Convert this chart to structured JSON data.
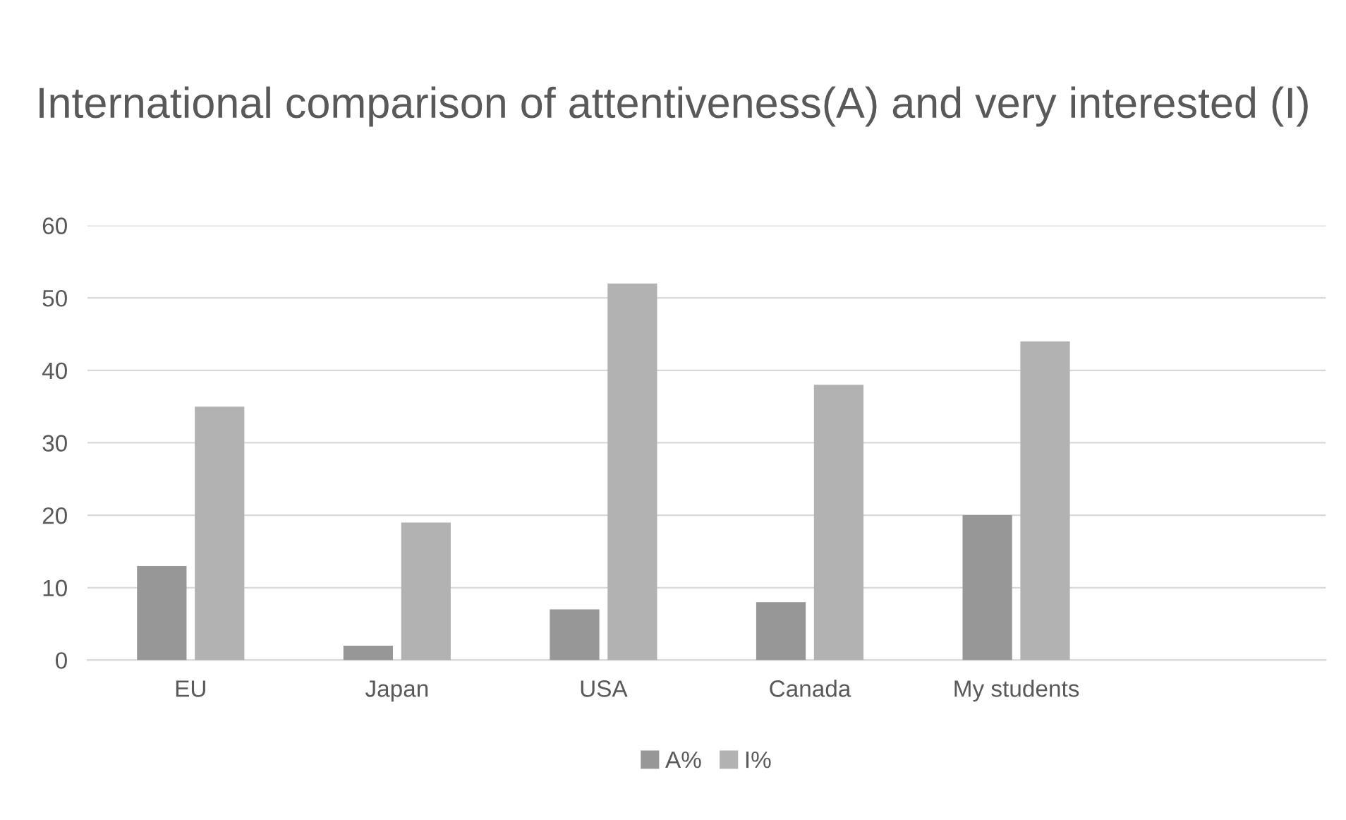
{
  "chart_data": {
    "type": "bar",
    "title": "International comparison of attentiveness(A) and very interested (I)",
    "categories": [
      "EU",
      "Japan",
      "USA",
      "Canada",
      "My students",
      null
    ],
    "series": [
      {
        "name": "A%",
        "color": "#979797",
        "values": [
          13,
          2,
          7,
          8,
          20,
          null
        ]
      },
      {
        "name": "I%",
        "color": "#b2b2b2",
        "values": [
          35,
          19,
          52,
          38,
          44,
          null
        ]
      }
    ],
    "ylim": [
      0,
      60
    ],
    "yticks": [
      0,
      10,
      20,
      30,
      40,
      50,
      60
    ],
    "grid": "y",
    "legend": "bottom"
  }
}
